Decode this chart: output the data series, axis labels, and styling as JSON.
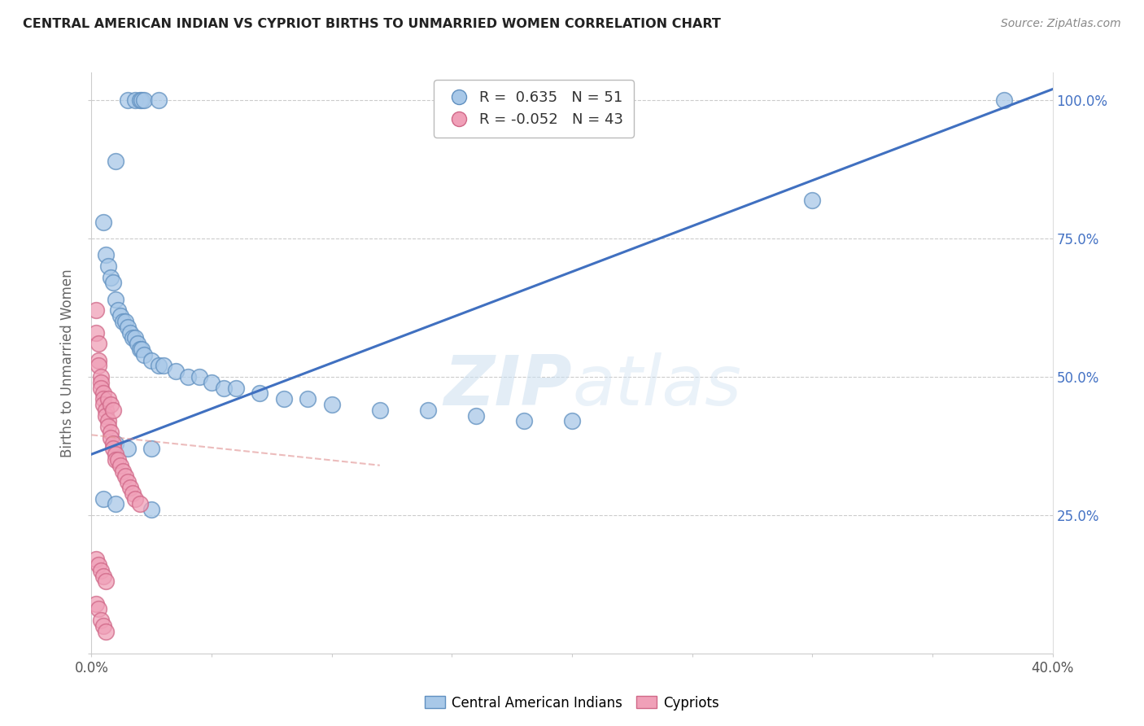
{
  "title": "CENTRAL AMERICAN INDIAN VS CYPRIOT BIRTHS TO UNMARRIED WOMEN CORRELATION CHART",
  "source": "Source: ZipAtlas.com",
  "ylabel": "Births to Unmarried Women",
  "xmin": 0.0,
  "xmax": 0.4,
  "ymin": 0.0,
  "ymax": 1.05,
  "blue_color": "#a8c8e8",
  "pink_color": "#f0a0b8",
  "blue_edge": "#6090c0",
  "pink_edge": "#d06888",
  "trend_blue": "#4070c0",
  "trend_pink": "#e09090",
  "legend_label_blue": "Central American Indians",
  "legend_label_pink": "Cypriots",
  "r_blue": 0.635,
  "n_blue": 51,
  "r_pink": -0.052,
  "n_pink": 43,
  "watermark_zip": "ZIP",
  "watermark_atlas": "atlas",
  "blue_trend_x": [
    0.0,
    0.4
  ],
  "blue_trend_y": [
    0.36,
    1.02
  ],
  "pink_trend_x": [
    0.0,
    0.12
  ],
  "pink_trend_y": [
    0.395,
    0.34
  ],
  "blue_scatter_x": [
    0.015,
    0.018,
    0.02,
    0.021,
    0.022,
    0.028,
    0.01,
    0.005,
    0.006,
    0.007,
    0.008,
    0.009,
    0.01,
    0.011,
    0.012,
    0.013,
    0.014,
    0.015,
    0.016,
    0.017,
    0.018,
    0.019,
    0.02,
    0.021,
    0.022,
    0.025,
    0.028,
    0.03,
    0.035,
    0.04,
    0.045,
    0.05,
    0.055,
    0.06,
    0.07,
    0.08,
    0.09,
    0.1,
    0.12,
    0.14,
    0.16,
    0.18,
    0.2,
    0.01,
    0.015,
    0.025,
    0.3,
    0.38,
    0.005,
    0.01,
    0.025
  ],
  "blue_scatter_y": [
    1.0,
    1.0,
    1.0,
    1.0,
    1.0,
    1.0,
    0.89,
    0.78,
    0.72,
    0.7,
    0.68,
    0.67,
    0.64,
    0.62,
    0.61,
    0.6,
    0.6,
    0.59,
    0.58,
    0.57,
    0.57,
    0.56,
    0.55,
    0.55,
    0.54,
    0.53,
    0.52,
    0.52,
    0.51,
    0.5,
    0.5,
    0.49,
    0.48,
    0.48,
    0.47,
    0.46,
    0.46,
    0.45,
    0.44,
    0.44,
    0.43,
    0.42,
    0.42,
    0.38,
    0.37,
    0.37,
    0.82,
    1.0,
    0.28,
    0.27,
    0.26
  ],
  "pink_scatter_x": [
    0.002,
    0.002,
    0.003,
    0.003,
    0.003,
    0.004,
    0.004,
    0.004,
    0.005,
    0.005,
    0.005,
    0.006,
    0.006,
    0.007,
    0.007,
    0.008,
    0.008,
    0.009,
    0.009,
    0.01,
    0.01,
    0.011,
    0.012,
    0.013,
    0.014,
    0.015,
    0.016,
    0.017,
    0.018,
    0.02,
    0.002,
    0.003,
    0.004,
    0.005,
    0.006,
    0.002,
    0.003,
    0.004,
    0.005,
    0.006,
    0.007,
    0.008,
    0.009
  ],
  "pink_scatter_y": [
    0.62,
    0.58,
    0.56,
    0.53,
    0.52,
    0.5,
    0.49,
    0.48,
    0.47,
    0.46,
    0.45,
    0.44,
    0.43,
    0.42,
    0.41,
    0.4,
    0.39,
    0.38,
    0.37,
    0.36,
    0.35,
    0.35,
    0.34,
    0.33,
    0.32,
    0.31,
    0.3,
    0.29,
    0.28,
    0.27,
    0.17,
    0.16,
    0.15,
    0.14,
    0.13,
    0.09,
    0.08,
    0.06,
    0.05,
    0.04,
    0.46,
    0.45,
    0.44
  ]
}
